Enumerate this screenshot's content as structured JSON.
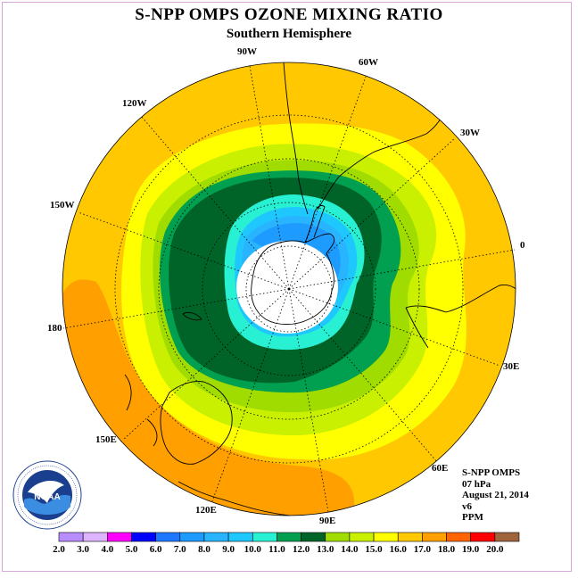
{
  "title": "S-NPP OMPS OZONE MIXING RATIO",
  "subtitle": "Southern Hemisphere",
  "longitude_labels": [
    "90W",
    "60W",
    "30W",
    "0",
    "30E",
    "60E",
    "90E",
    "120E",
    "150E",
    "180",
    "150W",
    "120W"
  ],
  "info": {
    "instrument": "S-NPP OMPS",
    "level": "07 hPa",
    "date": "August 21, 2014",
    "version": "v6",
    "units": "PPM"
  },
  "logo": {
    "text": "NOAA",
    "ring_text": "NATIONAL OCEANIC AND ATMOSPHERIC ADMINISTRATION · U.S. DEPARTMENT OF COMMERCE"
  },
  "colorbar": {
    "labels": [
      "2.0",
      "3.0",
      "4.0",
      "5.0",
      "6.0",
      "7.0",
      "8.0",
      "9.0",
      "10.0",
      "11.0",
      "12.0",
      "13.0",
      "14.0",
      "15.0",
      "16.0",
      "17.0",
      "18.0",
      "19.0",
      "20.0"
    ],
    "colors": [
      "#b98cff",
      "#dcb4ff",
      "#ff00ff",
      "#0000ff",
      "#1e78ff",
      "#1e9bff",
      "#28b4ff",
      "#1ec8ff",
      "#28f0d2",
      "#00a050",
      "#006428",
      "#a0dc00",
      "#c8f000",
      "#ffff00",
      "#ffc800",
      "#ffa000",
      "#ff6400",
      "#ff0000",
      "#a0643c"
    ]
  },
  "field_colors": {
    "ppm_16": "#ffc800",
    "ppm_17": "#ffa000",
    "ppm_15": "#ffff00",
    "ppm_14": "#c8f000",
    "ppm_13": "#a0dc00",
    "ppm_11": "#00a050",
    "ppm_12": "#006428",
    "ppm_10": "#28f0d2",
    "ppm_9": "#1ec8ff",
    "ppm_8": "#28b4ff",
    "ppm_7": "#1e9bff",
    "no_data": "#ffffff"
  }
}
